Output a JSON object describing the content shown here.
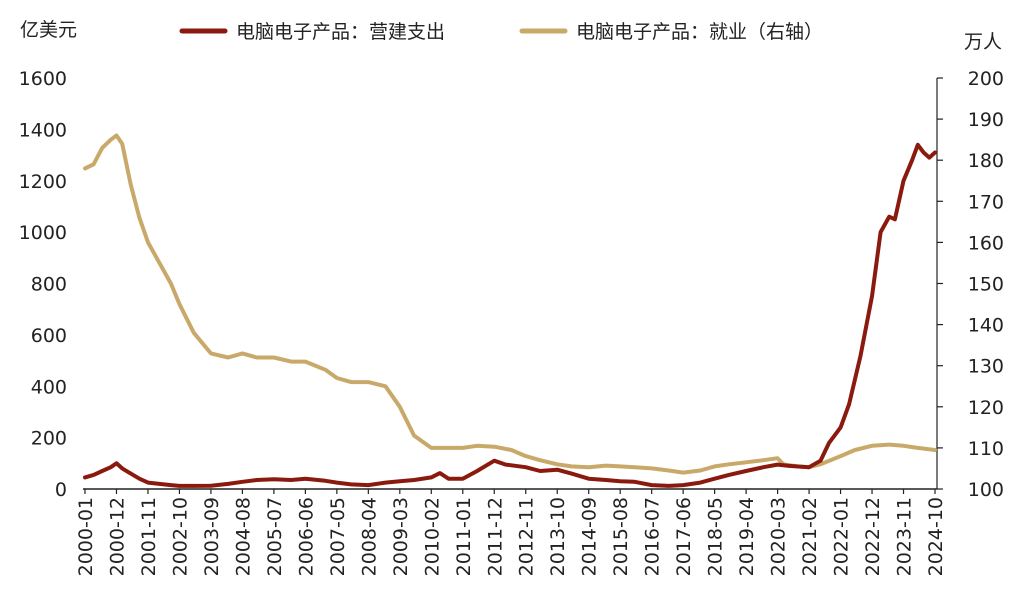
{
  "chart_data": {
    "type": "line",
    "left_axis_label": "亿美元",
    "right_axis_label": "万人",
    "left_ylim": [
      0,
      1600
    ],
    "left_yticks": [
      0,
      200,
      400,
      600,
      800,
      1000,
      1200,
      1400,
      1600
    ],
    "right_ylim": [
      100,
      200
    ],
    "right_yticks": [
      100,
      110,
      120,
      130,
      140,
      150,
      160,
      170,
      180,
      190,
      200
    ],
    "xlim": [
      "2000-01",
      "2024-10"
    ],
    "x_ticks": [
      "2000-01",
      "2000-12",
      "2001-11",
      "2002-10",
      "2003-09",
      "2004-08",
      "2005-07",
      "2006-06",
      "2007-05",
      "2008-04",
      "2009-03",
      "2010-02",
      "2011-01",
      "2011-12",
      "2012-11",
      "2013-10",
      "2014-09",
      "2015-08",
      "2016-07",
      "2017-06",
      "2018-05",
      "2019-04",
      "2020-03",
      "2021-02",
      "2022-01",
      "2022-12",
      "2023-11",
      "2024-10"
    ],
    "grid": false,
    "legend_position": "top",
    "series": [
      {
        "name": "电脑电子产品：营建支出",
        "axis": "left",
        "color": "#8B1A0E",
        "points": [
          [
            "2000-01",
            45
          ],
          [
            "2000-04",
            55
          ],
          [
            "2000-07",
            70
          ],
          [
            "2000-10",
            85
          ],
          [
            "2000-12",
            100
          ],
          [
            "2001-02",
            80
          ],
          [
            "2001-05",
            60
          ],
          [
            "2001-08",
            40
          ],
          [
            "2001-11",
            25
          ],
          [
            "2002-03",
            20
          ],
          [
            "2002-07",
            15
          ],
          [
            "2002-10",
            12
          ],
          [
            "2003-03",
            12
          ],
          [
            "2003-09",
            13
          ],
          [
            "2004-03",
            20
          ],
          [
            "2004-08",
            28
          ],
          [
            "2005-01",
            35
          ],
          [
            "2005-07",
            38
          ],
          [
            "2006-01",
            35
          ],
          [
            "2006-06",
            40
          ],
          [
            "2007-01",
            32
          ],
          [
            "2007-05",
            25
          ],
          [
            "2007-10",
            18
          ],
          [
            "2008-04",
            15
          ],
          [
            "2008-10",
            25
          ],
          [
            "2009-03",
            30
          ],
          [
            "2009-08",
            35
          ],
          [
            "2010-02",
            45
          ],
          [
            "2010-05",
            62
          ],
          [
            "2010-08",
            40
          ],
          [
            "2011-01",
            40
          ],
          [
            "2011-06",
            70
          ],
          [
            "2011-12",
            110
          ],
          [
            "2012-04",
            95
          ],
          [
            "2012-11",
            85
          ],
          [
            "2013-04",
            70
          ],
          [
            "2013-10",
            75
          ],
          [
            "2014-03",
            60
          ],
          [
            "2014-09",
            40
          ],
          [
            "2015-03",
            35
          ],
          [
            "2015-08",
            30
          ],
          [
            "2016-01",
            28
          ],
          [
            "2016-07",
            15
          ],
          [
            "2017-01",
            12
          ],
          [
            "2017-06",
            15
          ],
          [
            "2017-12",
            25
          ],
          [
            "2018-05",
            40
          ],
          [
            "2018-10",
            55
          ],
          [
            "2019-04",
            70
          ],
          [
            "2019-10",
            85
          ],
          [
            "2020-03",
            95
          ],
          [
            "2020-07",
            90
          ],
          [
            "2021-02",
            85
          ],
          [
            "2021-06",
            110
          ],
          [
            "2021-09",
            180
          ],
          [
            "2022-01",
            240
          ],
          [
            "2022-04",
            330
          ],
          [
            "2022-08",
            520
          ],
          [
            "2022-12",
            750
          ],
          [
            "2023-03",
            1000
          ],
          [
            "2023-06",
            1060
          ],
          [
            "2023-08",
            1050
          ],
          [
            "2023-11",
            1200
          ],
          [
            "2024-02",
            1280
          ],
          [
            "2024-04",
            1340
          ],
          [
            "2024-06",
            1310
          ],
          [
            "2024-08",
            1290
          ],
          [
            "2024-10",
            1310
          ]
        ]
      },
      {
        "name": "电脑电子产品：就业（右轴）",
        "axis": "right",
        "color": "#C8A96A",
        "points": [
          [
            "2000-01",
            178
          ],
          [
            "2000-04",
            179
          ],
          [
            "2000-07",
            183
          ],
          [
            "2000-10",
            185
          ],
          [
            "2000-12",
            186
          ],
          [
            "2001-02",
            184
          ],
          [
            "2001-05",
            174
          ],
          [
            "2001-08",
            166
          ],
          [
            "2001-11",
            160
          ],
          [
            "2002-03",
            155
          ],
          [
            "2002-07",
            150
          ],
          [
            "2002-10",
            145
          ],
          [
            "2003-03",
            138
          ],
          [
            "2003-09",
            133
          ],
          [
            "2004-03",
            132
          ],
          [
            "2004-08",
            133
          ],
          [
            "2005-01",
            132
          ],
          [
            "2005-07",
            132
          ],
          [
            "2006-01",
            131
          ],
          [
            "2006-06",
            131
          ],
          [
            "2007-01",
            129
          ],
          [
            "2007-05",
            127
          ],
          [
            "2007-10",
            126
          ],
          [
            "2008-04",
            126
          ],
          [
            "2008-10",
            125
          ],
          [
            "2009-03",
            120
          ],
          [
            "2009-08",
            113
          ],
          [
            "2010-02",
            110
          ],
          [
            "2010-07",
            110
          ],
          [
            "2011-01",
            110
          ],
          [
            "2011-06",
            110.5
          ],
          [
            "2011-12",
            110.3
          ],
          [
            "2012-06",
            109.5
          ],
          [
            "2012-11",
            108
          ],
          [
            "2013-04",
            107
          ],
          [
            "2013-10",
            106
          ],
          [
            "2014-03",
            105.5
          ],
          [
            "2014-09",
            105.3
          ],
          [
            "2015-03",
            105.7
          ],
          [
            "2015-08",
            105.5
          ],
          [
            "2016-01",
            105.3
          ],
          [
            "2016-07",
            105
          ],
          [
            "2017-01",
            104.5
          ],
          [
            "2017-06",
            104
          ],
          [
            "2017-12",
            104.5
          ],
          [
            "2018-05",
            105.5
          ],
          [
            "2018-10",
            106
          ],
          [
            "2019-04",
            106.5
          ],
          [
            "2019-10",
            107
          ],
          [
            "2020-03",
            107.5
          ],
          [
            "2020-05",
            106
          ],
          [
            "2020-10",
            105.5
          ],
          [
            "2021-02",
            105.3
          ],
          [
            "2021-06",
            106
          ],
          [
            "2022-01",
            108
          ],
          [
            "2022-06",
            109.5
          ],
          [
            "2022-12",
            110.5
          ],
          [
            "2023-06",
            110.8
          ],
          [
            "2023-11",
            110.5
          ],
          [
            "2024-04",
            110
          ],
          [
            "2024-10",
            109.5
          ]
        ]
      }
    ]
  }
}
